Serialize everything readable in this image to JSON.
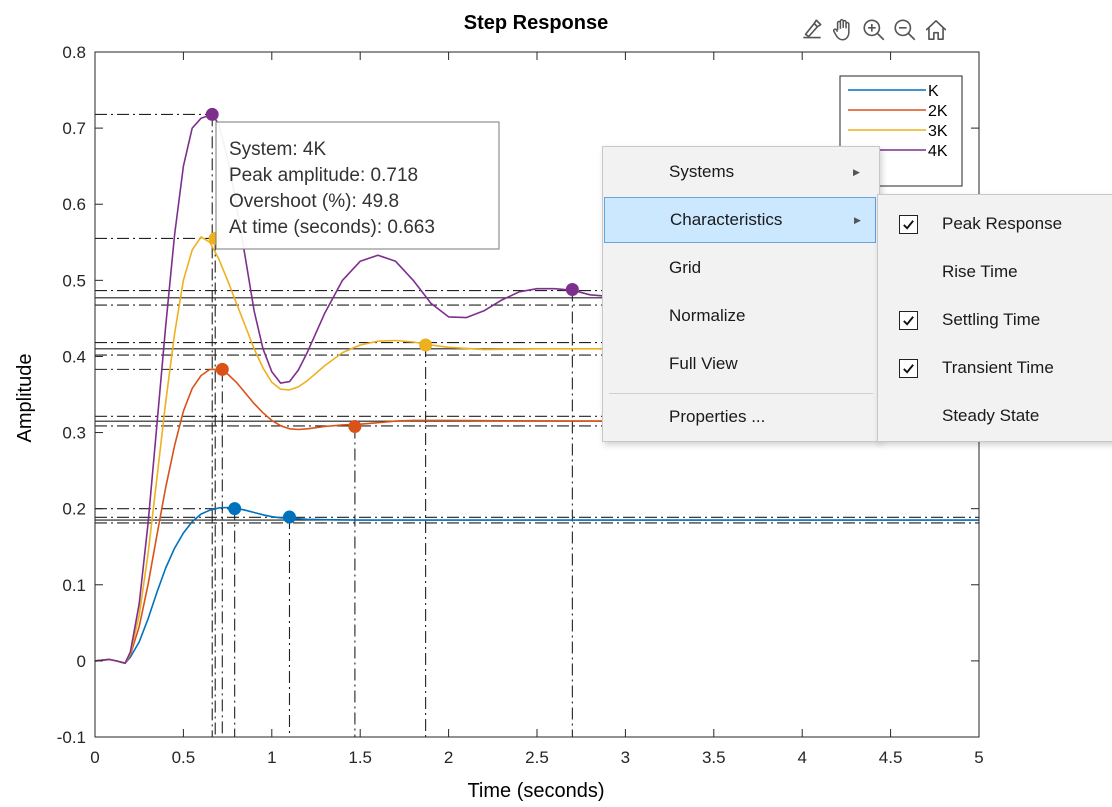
{
  "chart_data": {
    "type": "line",
    "title": "Step Response",
    "xlabel": "Time (seconds)",
    "ylabel": "Amplitude",
    "xlim": [
      0,
      5
    ],
    "ylim": [
      -0.1,
      0.8
    ],
    "xticks": [
      0,
      0.5,
      1,
      1.5,
      2,
      2.5,
      3,
      3.5,
      4,
      4.5,
      5
    ],
    "xtick_labels": [
      "0",
      "0.5",
      "1",
      "1.5",
      "2",
      "2.5",
      "3",
      "3.5",
      "4",
      "4.5",
      "5"
    ],
    "yticks": [
      -0.1,
      0,
      0.1,
      0.2,
      0.3,
      0.4,
      0.5,
      0.6,
      0.7,
      0.8
    ],
    "ytick_labels": [
      "-0.1",
      "0",
      "0.1",
      "0.2",
      "0.3",
      "0.4",
      "0.5",
      "0.6",
      "0.7",
      "0.8"
    ],
    "grid": false,
    "legend_position": "top-right",
    "series": [
      {
        "name": "K",
        "color": "#0072BD",
        "x": [
          0,
          0.08,
          0.12,
          0.17,
          0.2,
          0.25,
          0.3,
          0.35,
          0.4,
          0.45,
          0.5,
          0.55,
          0.6,
          0.65,
          0.7,
          0.75,
          0.8,
          0.85,
          0.9,
          0.95,
          1.0,
          1.05,
          1.1,
          1.2,
          1.3,
          1.5,
          2.0,
          3.0,
          4.0,
          5.0
        ],
        "y": [
          0,
          0.002,
          0.0,
          -0.003,
          0.005,
          0.025,
          0.055,
          0.09,
          0.122,
          0.148,
          0.168,
          0.183,
          0.193,
          0.198,
          0.201,
          0.2015,
          0.2005,
          0.198,
          0.195,
          0.192,
          0.1895,
          0.188,
          0.1875,
          0.186,
          0.1855,
          0.185,
          0.185,
          0.185,
          0.185,
          0.185
        ],
        "peak": {
          "t": 0.79,
          "y": 0.2
        },
        "settling": {
          "t": 1.1,
          "y": 0.189
        },
        "final": 0.185
      },
      {
        "name": "2K",
        "color": "#D95319",
        "x": [
          0,
          0.08,
          0.12,
          0.17,
          0.2,
          0.25,
          0.3,
          0.35,
          0.4,
          0.45,
          0.5,
          0.55,
          0.6,
          0.65,
          0.7,
          0.75,
          0.8,
          0.85,
          0.9,
          0.95,
          1.0,
          1.05,
          1.1,
          1.15,
          1.2,
          1.3,
          1.4,
          1.5,
          1.6,
          1.7,
          1.8,
          2.0,
          2.3,
          3.0,
          4.0,
          5.0
        ],
        "y": [
          0,
          0.002,
          0.0,
          -0.003,
          0.008,
          0.045,
          0.1,
          0.165,
          0.228,
          0.283,
          0.328,
          0.358,
          0.375,
          0.383,
          0.383,
          0.377,
          0.366,
          0.352,
          0.338,
          0.326,
          0.316,
          0.309,
          0.305,
          0.304,
          0.305,
          0.308,
          0.31,
          0.311,
          0.313,
          0.315,
          0.316,
          0.316,
          0.3155,
          0.315,
          0.315,
          0.315
        ],
        "peak": {
          "t": 0.72,
          "y": 0.383
        },
        "settling": {
          "t": 1.47,
          "y": 0.308
        },
        "final": 0.315
      },
      {
        "name": "3K",
        "color": "#EDB120",
        "x": [
          0,
          0.08,
          0.12,
          0.17,
          0.2,
          0.25,
          0.3,
          0.35,
          0.4,
          0.45,
          0.5,
          0.55,
          0.6,
          0.65,
          0.7,
          0.75,
          0.8,
          0.85,
          0.9,
          0.95,
          1.0,
          1.05,
          1.1,
          1.15,
          1.2,
          1.3,
          1.4,
          1.5,
          1.6,
          1.7,
          1.8,
          1.9,
          2.0,
          2.2,
          2.5,
          3.0,
          4.0,
          5.0
        ],
        "y": [
          0,
          0.002,
          0.0,
          -0.003,
          0.01,
          0.06,
          0.14,
          0.24,
          0.34,
          0.43,
          0.5,
          0.54,
          0.557,
          0.55,
          0.528,
          0.5,
          0.47,
          0.44,
          0.41,
          0.385,
          0.366,
          0.357,
          0.356,
          0.36,
          0.368,
          0.388,
          0.405,
          0.415,
          0.42,
          0.421,
          0.419,
          0.415,
          0.412,
          0.409,
          0.41,
          0.41,
          0.41,
          0.41
        ],
        "peak": {
          "t": 0.68,
          "y": 0.555
        },
        "settling": {
          "t": 1.87,
          "y": 0.415
        },
        "final": 0.41
      },
      {
        "name": "4K",
        "color": "#7E2F8E",
        "x": [
          0,
          0.08,
          0.12,
          0.17,
          0.2,
          0.25,
          0.3,
          0.35,
          0.4,
          0.45,
          0.5,
          0.55,
          0.6,
          0.663,
          0.7,
          0.75,
          0.8,
          0.85,
          0.9,
          0.95,
          1.0,
          1.05,
          1.1,
          1.15,
          1.2,
          1.3,
          1.4,
          1.5,
          1.6,
          1.7,
          1.8,
          1.9,
          2.0,
          2.1,
          2.2,
          2.3,
          2.4,
          2.5,
          2.6,
          2.7,
          2.8,
          3.0
        ],
        "y": [
          0,
          0.002,
          0.0,
          -0.003,
          0.012,
          0.075,
          0.18,
          0.31,
          0.44,
          0.56,
          0.65,
          0.7,
          0.713,
          0.718,
          0.705,
          0.66,
          0.6,
          0.53,
          0.46,
          0.41,
          0.38,
          0.365,
          0.367,
          0.382,
          0.405,
          0.457,
          0.5,
          0.525,
          0.533,
          0.525,
          0.5,
          0.47,
          0.452,
          0.451,
          0.46,
          0.474,
          0.485,
          0.489,
          0.489,
          0.487,
          0.481,
          0.477
        ],
        "peak": {
          "t": 0.663,
          "y": 0.718
        },
        "settling": {
          "t": 2.7,
          "y": 0.488
        },
        "final": 0.477
      }
    ]
  },
  "tooltip": {
    "system": "System: 4K",
    "peak": "Peak amplitude: 0.718",
    "overshoot": "Overshoot (%): 49.8",
    "time": "At time (seconds): 0.663"
  },
  "toolbar": [
    "brush-icon",
    "pan-icon",
    "zoom-in-icon",
    "zoom-out-icon",
    "home-icon"
  ],
  "menu": {
    "items": [
      {
        "label": "Systems",
        "submenu": true,
        "highlight": false
      },
      {
        "label": "Characteristics",
        "submenu": true,
        "highlight": true
      },
      {
        "label": "Grid",
        "submenu": false,
        "highlight": false
      },
      {
        "label": "Normalize",
        "submenu": false,
        "highlight": false
      },
      {
        "label": "Full View",
        "submenu": false,
        "highlight": false
      },
      {
        "label": "Properties ...",
        "submenu": false,
        "highlight": false
      }
    ]
  },
  "submenu": {
    "items": [
      {
        "label": "Peak Response",
        "checked": true
      },
      {
        "label": "Rise Time",
        "checked": false
      },
      {
        "label": "Settling Time",
        "checked": true
      },
      {
        "label": "Transient Time",
        "checked": true
      },
      {
        "label": "Steady State",
        "checked": false
      }
    ]
  }
}
